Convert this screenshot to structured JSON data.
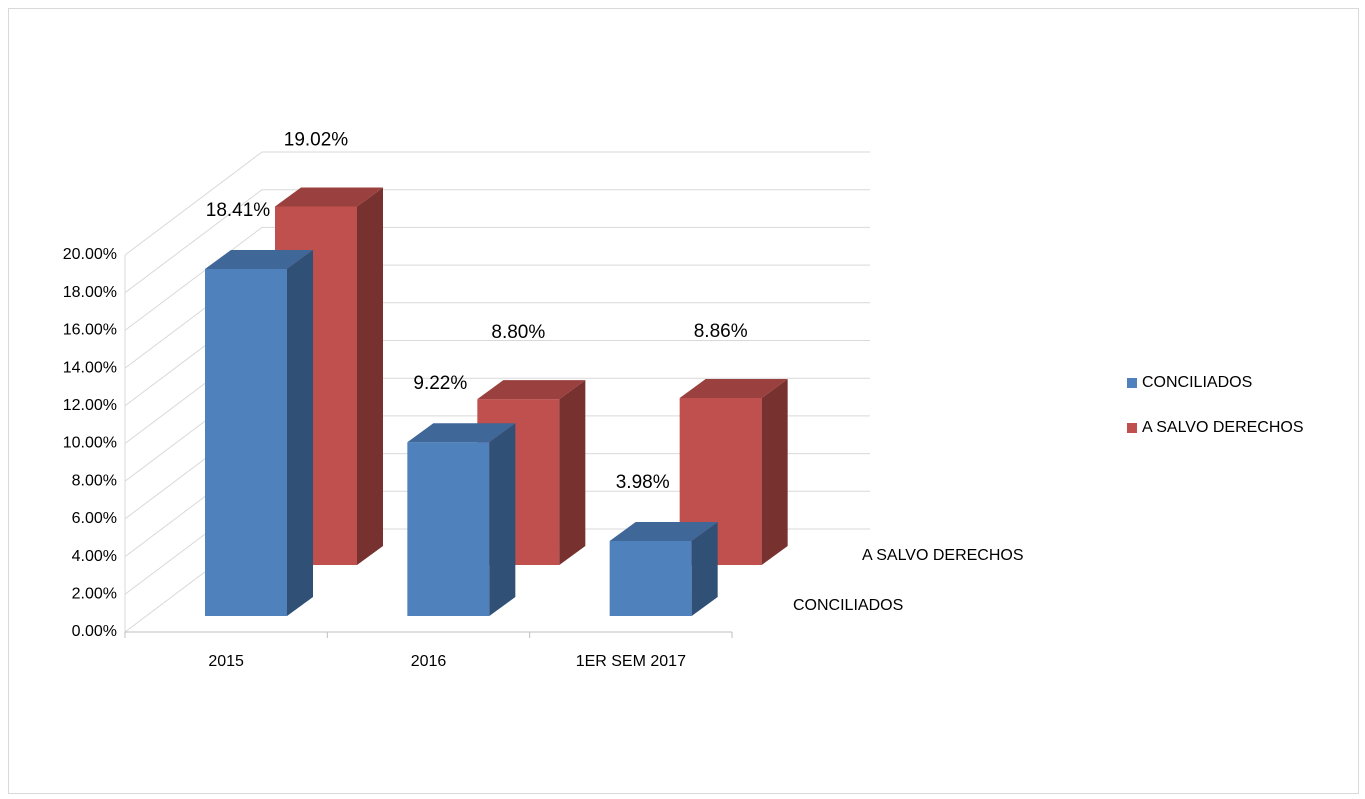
{
  "chart_data": {
    "type": "bar3d",
    "categories": [
      "2015",
      "2016",
      "1ER SEM 2017"
    ],
    "series": [
      {
        "name": "CONCILIADOS",
        "color": "#4f81bd",
        "values": [
          18.41,
          9.22,
          3.98
        ],
        "value_labels": [
          "18.41%",
          "9.22%",
          "3.98%"
        ]
      },
      {
        "name": "A SALVO DERECHOS",
        "color": "#c0504d",
        "values": [
          19.02,
          8.8,
          8.86
        ],
        "value_labels": [
          "19.02%",
          "8.80%",
          "8.86%"
        ]
      }
    ],
    "ylim": [
      0,
      20
    ],
    "yticks": [
      {
        "value": 0,
        "label": "0.00%"
      },
      {
        "value": 2,
        "label": "2.00%"
      },
      {
        "value": 4,
        "label": "4.00%"
      },
      {
        "value": 6,
        "label": "6.00%"
      },
      {
        "value": 8,
        "label": "8.00%"
      },
      {
        "value": 10,
        "label": "10.00%"
      },
      {
        "value": 12,
        "label": "12.00%"
      },
      {
        "value": 14,
        "label": "14.00%"
      },
      {
        "value": 16,
        "label": "16.00%"
      },
      {
        "value": 18,
        "label": "18.00%"
      },
      {
        "value": 20,
        "label": "20.00%"
      }
    ],
    "grid": true,
    "legend": "right"
  }
}
